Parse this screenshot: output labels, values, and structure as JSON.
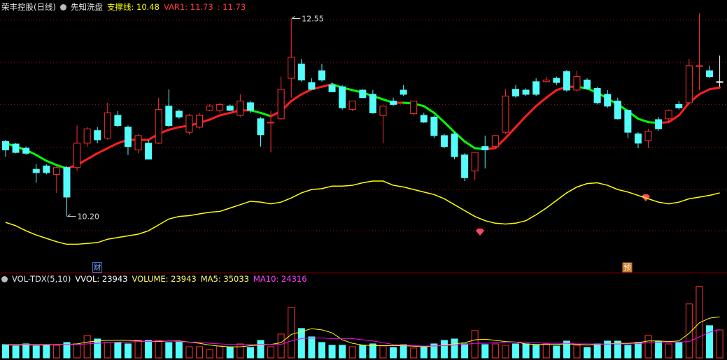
{
  "chart_data": [
    {
      "type": "candlestick",
      "title": "荣丰控股(日线)",
      "indicator": "先知洗盘",
      "ylim": [
        9.55,
        12.67
      ],
      "grid_lines": [
        12.53,
        12.03,
        11.53,
        11.02,
        10.52,
        10.03
      ],
      "up_color": "#ff3232",
      "down_color": "#54fcfc",
      "flat_color": "#ffffff",
      "open": [
        11.09,
        11.06,
        11.01,
        10.76,
        10.8,
        10.7,
        10.78,
        10.78,
        11.07,
        11.22,
        11.13,
        11.4,
        11.26,
        10.99,
        11.07,
        11.07,
        11.51,
        11.45,
        11.2,
        11.26,
        11.46,
        11.46,
        11.51,
        11.4,
        11.55,
        11.36,
        11.31,
        11.36,
        11.84,
        12.01,
        11.79,
        11.93,
        11.76,
        11.74,
        11.47,
        11.7,
        11.65,
        11.4,
        11.57,
        11.7,
        11.42,
        11.4,
        11.38,
        11.16,
        11.18,
        10.93,
        10.74,
        11.03,
        11.03,
        11.2,
        11.71,
        11.7,
        11.8,
        11.8,
        11.84,
        11.92,
        11.7,
        11.82,
        11.72,
        11.65,
        11.57,
        11.46,
        11.18,
        11.1,
        11.35,
        11.36,
        11.53,
        11.55,
        11.98,
        11.93,
        11.8
      ],
      "high": [
        11.11,
        11.07,
        11.03,
        10.82,
        10.82,
        10.8,
        10.8,
        11.28,
        11.26,
        11.26,
        11.55,
        11.45,
        11.28,
        11.18,
        11.11,
        11.61,
        11.71,
        11.47,
        11.42,
        11.43,
        11.53,
        11.55,
        11.53,
        11.65,
        11.57,
        11.38,
        11.45,
        11.86,
        12.55,
        12.07,
        11.84,
        12.01,
        11.79,
        11.76,
        11.57,
        11.71,
        11.7,
        11.51,
        11.61,
        11.76,
        11.57,
        11.43,
        11.4,
        11.18,
        11.2,
        10.95,
        10.96,
        11.16,
        11.17,
        11.71,
        11.76,
        11.72,
        11.84,
        11.86,
        11.86,
        11.94,
        11.93,
        11.84,
        11.74,
        11.7,
        11.61,
        11.47,
        11.2,
        11.24,
        11.38,
        11.47,
        11.57,
        12.07,
        12.61,
        11.99,
        12.11
      ],
      "low": [
        10.91,
        10.95,
        10.93,
        10.6,
        10.7,
        10.48,
        10.2,
        10.74,
        11.03,
        11.07,
        11.11,
        11.26,
        10.93,
        10.95,
        10.88,
        11.06,
        11.26,
        11.36,
        11.17,
        11.24,
        11.45,
        11.43,
        11.45,
        11.38,
        11.43,
        11.03,
        10.96,
        11.35,
        11.61,
        11.8,
        11.7,
        11.8,
        11.68,
        11.47,
        11.45,
        11.61,
        11.42,
        11.07,
        11.51,
        11.63,
        11.4,
        11.31,
        11.13,
        11.01,
        10.88,
        10.62,
        10.63,
        10.77,
        11.01,
        11.18,
        11.61,
        11.63,
        11.63,
        11.79,
        11.76,
        11.68,
        11.68,
        11.7,
        11.53,
        11.49,
        11.35,
        11.13,
        11.01,
        11.01,
        11.22,
        11.32,
        11.47,
        11.53,
        11.7,
        11.84,
        11.74
      ],
      "close": [
        10.99,
        10.96,
        10.95,
        10.72,
        10.72,
        10.78,
        10.43,
        11.07,
        11.24,
        11.11,
        11.43,
        11.28,
        11.03,
        11.16,
        10.88,
        11.47,
        11.28,
        11.38,
        11.4,
        11.4,
        11.51,
        11.53,
        11.46,
        11.57,
        11.46,
        11.17,
        11.32,
        11.71,
        12.09,
        11.82,
        11.71,
        11.82,
        11.68,
        11.49,
        11.57,
        11.61,
        11.43,
        11.51,
        11.53,
        11.65,
        11.57,
        11.32,
        11.16,
        11.03,
        10.91,
        10.66,
        10.96,
        10.99,
        11.16,
        11.63,
        11.63,
        11.65,
        11.65,
        11.82,
        11.79,
        11.7,
        11.86,
        11.72,
        11.55,
        11.51,
        11.36,
        11.2,
        11.07,
        11.21,
        11.24,
        11.46,
        11.49,
        11.99,
        11.99,
        11.86,
        11.8
      ],
      "lines": [
        {
          "name": "VAR1",
          "color": "#ff2020",
          "down_color": "#00ff00",
          "values": [
            11.07,
            11.03,
            10.99,
            10.93,
            10.86,
            10.81,
            10.77,
            10.81,
            10.88,
            10.95,
            11.01,
            11.07,
            11.11,
            11.11,
            11.11,
            11.18,
            11.23,
            11.26,
            11.28,
            11.31,
            11.35,
            11.4,
            11.43,
            11.46,
            11.46,
            11.43,
            11.39,
            11.45,
            11.57,
            11.65,
            11.71,
            11.74,
            11.77,
            11.73,
            11.7,
            11.67,
            11.63,
            11.59,
            11.55,
            11.55,
            11.54,
            11.51,
            11.43,
            11.32,
            11.2,
            11.09,
            11.01,
            11.0,
            11.01,
            11.13,
            11.26,
            11.39,
            11.51,
            11.61,
            11.7,
            11.74,
            11.74,
            11.72,
            11.67,
            11.6,
            11.53,
            11.45,
            11.36,
            11.32,
            11.31,
            11.32,
            11.4,
            11.55,
            11.65,
            11.71,
            11.73
          ]
        },
        {
          "name": "支撑线",
          "color": "#ffff00",
          "values": [
            10.13,
            10.09,
            10.03,
            9.98,
            9.94,
            9.9,
            9.87,
            9.87,
            9.88,
            9.89,
            9.93,
            9.95,
            9.97,
            9.99,
            10.03,
            10.1,
            10.17,
            10.2,
            10.21,
            10.23,
            10.25,
            10.26,
            10.3,
            10.34,
            10.38,
            10.37,
            10.35,
            10.37,
            10.42,
            10.48,
            10.52,
            10.53,
            10.56,
            10.56,
            10.57,
            10.6,
            10.62,
            10.62,
            10.57,
            10.55,
            10.52,
            10.49,
            10.46,
            10.41,
            10.34,
            10.27,
            10.2,
            10.15,
            10.12,
            10.11,
            10.12,
            10.15,
            10.22,
            10.3,
            10.39,
            10.48,
            10.55,
            10.59,
            10.6,
            10.57,
            10.52,
            10.49,
            10.45,
            10.41,
            10.37,
            10.35,
            10.37,
            10.41,
            10.43,
            10.45,
            10.48
          ]
        }
      ],
      "legend": [
        {
          "label": "支撑线: 10.48",
          "color": "#ffff00"
        },
        {
          "label": "VAR1: 11.73",
          "color": "#ff3c3c"
        },
        {
          "label": ": 11.73",
          "color": "#ff3c3c"
        }
      ],
      "annotations": [
        12.55,
        {
          "value": 10.2,
          "label": "10.20"
        }
      ],
      "markers": [
        "财",
        "预"
      ]
    },
    {
      "type": "volume",
      "title": "VOL-TDX(5,10)",
      "ylim": [
        0,
        64000
      ],
      "values": [
        11400,
        10200,
        12000,
        10200,
        11400,
        10800,
        13200,
        12000,
        19200,
        16200,
        13200,
        13200,
        12000,
        15000,
        15000,
        15000,
        13200,
        13800,
        9600,
        9600,
        7200,
        10200,
        9000,
        12000,
        9000,
        15000,
        9600,
        20400,
        43200,
        25200,
        18000,
        13200,
        10800,
        10800,
        9600,
        10800,
        12000,
        10200,
        9000,
        11400,
        8400,
        9600,
        12000,
        15000,
        16200,
        12000,
        23400,
        11400,
        12000,
        10800,
        12000,
        12000,
        10800,
        12000,
        10200,
        14400,
        10800,
        9000,
        12000,
        14400,
        14400,
        10800,
        13200,
        19200,
        14400,
        12000,
        13200,
        46200,
        61200,
        27600,
        23943
      ],
      "series": [
        {
          "name": "MA5",
          "color": "#ffff00",
          "values": [
            11000,
            11000,
            11000,
            11000,
            11000,
            11500,
            11500,
            12000,
            13500,
            14500,
            15000,
            15000,
            15000,
            14500,
            14000,
            14000,
            14500,
            14500,
            13500,
            12500,
            11000,
            10000,
            9500,
            9500,
            10500,
            11000,
            11500,
            13000,
            20000,
            22500,
            25000,
            24000,
            21500,
            15500,
            12500,
            11000,
            10500,
            10500,
            10500,
            10500,
            10000,
            9500,
            10000,
            11000,
            12000,
            13000,
            15500,
            16000,
            15000,
            14000,
            13500,
            12000,
            11500,
            11500,
            11500,
            12000,
            11500,
            11000,
            11500,
            12000,
            12500,
            12500,
            13000,
            14500,
            14500,
            14000,
            14500,
            21000,
            30000,
            34000,
            35033
          ]
        },
        {
          "name": "MA10",
          "color": "#ff00ff",
          "values": [
            11500,
            11500,
            11500,
            11500,
            11500,
            11500,
            11500,
            11500,
            12000,
            12500,
            13000,
            13500,
            13500,
            14000,
            14000,
            14500,
            14500,
            14000,
            13500,
            13500,
            12500,
            12000,
            11500,
            11500,
            11500,
            11500,
            11500,
            11500,
            14500,
            16500,
            17000,
            17000,
            16500,
            16500,
            16500,
            15500,
            14500,
            13000,
            11500,
            11000,
            10500,
            10200,
            10200,
            10500,
            11000,
            11500,
            12500,
            12500,
            13000,
            13500,
            13500,
            13500,
            13000,
            12500,
            12500,
            12500,
            12000,
            12000,
            11800,
            11800,
            12000,
            12000,
            12200,
            13000,
            13500,
            13500,
            13500,
            14000,
            18000,
            22000,
            24316
          ]
        }
      ],
      "legend": [
        {
          "label": "VVOL: 23943",
          "color": "#ffffff"
        },
        {
          "label": "VOLUME: 23943",
          "color": "#ffff66"
        },
        {
          "label": "MA5: 35033",
          "color": "#ffff66"
        },
        {
          "label": "MA10: 24316",
          "color": "#ff40ff"
        }
      ]
    }
  ]
}
